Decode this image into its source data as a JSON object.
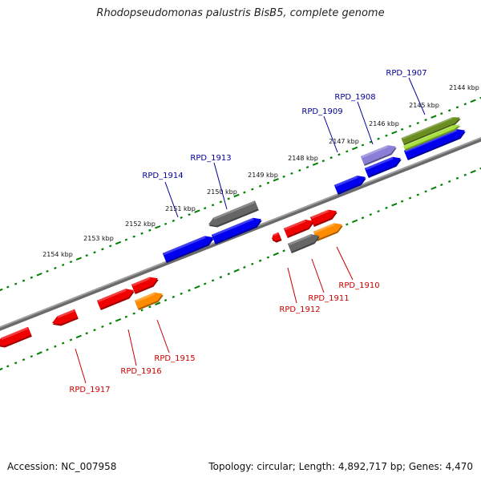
{
  "title": "Rhodopseudomonas palustris BisB5, complete genome",
  "footer": {
    "accession": "Accession: NC_007958",
    "summary": "Topology: circular; Length: 4,892,717 bp; Genes: 4,470"
  },
  "colors": {
    "backbone": "#808080",
    "ticks": "#008000",
    "forward_label": "#000099",
    "reverse_label": "#cc0000",
    "red": "#ee0000",
    "orange": "#ff8c00",
    "blue": "#0000ee",
    "gray": "#666666",
    "lavender": "#8a7fd6",
    "olive": "#6b8e23",
    "lime": "#a8e040"
  },
  "scale_labels": [
    "2144 kbp",
    "2145 kbp",
    "2146 kbp",
    "2147 kbp",
    "2148 kbp",
    "2149 kbp",
    "2150 kbp",
    "2151 kbp",
    "2152 kbp",
    "2153 kbp",
    "2154 kbp"
  ],
  "gene_labels": [
    {
      "text": "RPD_1907",
      "strand": "forward"
    },
    {
      "text": "RPD_1908",
      "strand": "forward"
    },
    {
      "text": "RPD_1909",
      "strand": "forward"
    },
    {
      "text": "RPD_1913",
      "strand": "forward"
    },
    {
      "text": "RPD_1914",
      "strand": "forward"
    },
    {
      "text": "RPD_1910",
      "strand": "reverse"
    },
    {
      "text": "RPD_1911",
      "strand": "reverse"
    },
    {
      "text": "RPD_1912",
      "strand": "reverse"
    },
    {
      "text": "RPD_1915",
      "strand": "reverse"
    },
    {
      "text": "RPD_1916",
      "strand": "reverse"
    },
    {
      "text": "RPD_1917",
      "strand": "reverse"
    }
  ]
}
